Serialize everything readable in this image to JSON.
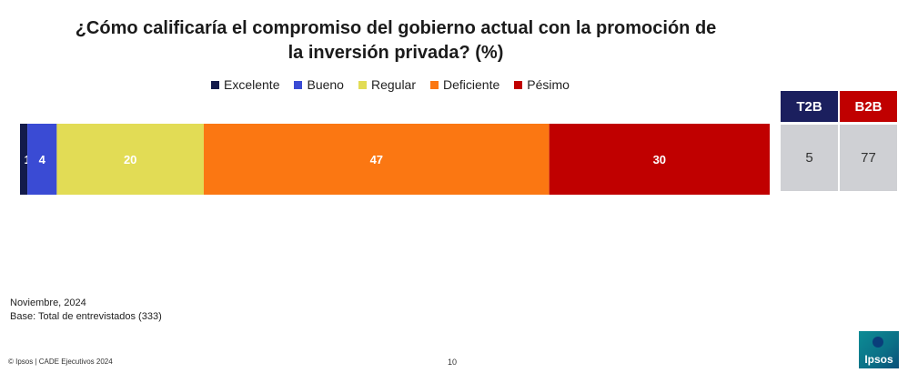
{
  "title_line1": "¿Cómo calificaría el compromiso del gobierno actual con la promoción de",
  "title_line2": "la inversión privada? (%)",
  "chart_data": {
    "type": "bar",
    "orientation": "horizontal",
    "stacked": true,
    "xlim": [
      0,
      102
    ],
    "categories": [
      ""
    ],
    "series": [
      {
        "name": "Excelente",
        "values": [
          1
        ],
        "color": "#131b4b",
        "label": "1",
        "label_color": "#ffffff"
      },
      {
        "name": "Bueno",
        "values": [
          4
        ],
        "color": "#3a4bd4",
        "label": "4",
        "label_color": "#ffffff"
      },
      {
        "name": "Regular",
        "values": [
          20
        ],
        "color": "#e2dc55",
        "label": "20",
        "label_color": "#ffffff"
      },
      {
        "name": "Deficiente",
        "values": [
          47
        ],
        "color": "#fb7712",
        "label": "47",
        "label_color": "#ffffff"
      },
      {
        "name": "Pésimo",
        "values": [
          30
        ],
        "color": "#c00000",
        "label": "30",
        "label_color": "#ffffff"
      }
    ],
    "legend_position": "top",
    "grid": false
  },
  "summary": {
    "t2b_label": "T2B",
    "b2b_label": "B2B",
    "t2b_value": "5",
    "b2b_value": "77",
    "t2b_color": "#1b1f5e",
    "b2b_color": "#c00000"
  },
  "footnote_date": "Noviembre, 2024",
  "footnote_base": "Base: Total de entrevistados (333)",
  "footer_left": "© Ipsos | CADE Ejecutivos 2024",
  "page_number": "10",
  "logo_text": "Ipsos"
}
